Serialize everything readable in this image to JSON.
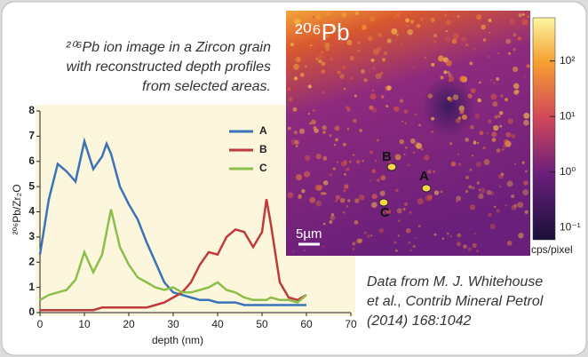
{
  "chart_data": {
    "type": "line",
    "title_lines": [
      "²⁰⁶Pb ion image in a Zircon grain",
      "with reconstructed depth profiles",
      "from selected areas."
    ],
    "xlabel": "depth (nm)",
    "ylabel": "²⁰⁶Pb/Zr₂O",
    "x": [
      0,
      2,
      4,
      6,
      8,
      10,
      12,
      14,
      15,
      16,
      18,
      20,
      22,
      24,
      26,
      28,
      30,
      32,
      34,
      36,
      38,
      40,
      42,
      44,
      46,
      48,
      50,
      51,
      52,
      54,
      56,
      58,
      60
    ],
    "series": [
      {
        "name": "A",
        "color": "#3a73b8",
        "values": [
          2.3,
          4.5,
          5.9,
          5.6,
          5.2,
          6.8,
          5.7,
          6.2,
          6.7,
          6.3,
          5.0,
          4.3,
          3.7,
          2.8,
          2.0,
          1.2,
          0.8,
          0.7,
          0.6,
          0.5,
          0.5,
          0.4,
          0.4,
          0.4,
          0.3,
          0.3,
          0.3,
          0.3,
          0.3,
          0.3,
          0.3,
          0.3,
          0.3
        ]
      },
      {
        "name": "B",
        "color": "#c0393b",
        "values": [
          0.1,
          0.1,
          0.1,
          0.1,
          0.1,
          0.1,
          0.1,
          0.2,
          0.2,
          0.2,
          0.2,
          0.2,
          0.2,
          0.2,
          0.3,
          0.4,
          0.6,
          0.8,
          1.2,
          1.9,
          2.4,
          2.3,
          3.0,
          3.3,
          3.2,
          2.6,
          3.2,
          4.5,
          3.5,
          1.2,
          0.6,
          0.5,
          0.7
        ]
      },
      {
        "name": "C",
        "color": "#8cbf4a",
        "values": [
          0.5,
          0.7,
          0.8,
          0.9,
          1.3,
          2.4,
          1.6,
          2.3,
          3.2,
          4.1,
          2.6,
          1.9,
          1.4,
          1.2,
          1.0,
          0.9,
          1.0,
          0.8,
          0.8,
          0.9,
          1.0,
          1.2,
          0.9,
          0.8,
          0.6,
          0.5,
          0.5,
          0.5,
          0.6,
          0.5,
          0.5,
          0.4,
          0.7
        ]
      }
    ],
    "xlim": [
      0,
      70
    ],
    "xticks": [
      0,
      10,
      20,
      30,
      40,
      50,
      60,
      70
    ],
    "ylim": [
      0,
      8
    ],
    "yticks": [
      0,
      1,
      2,
      3,
      4,
      5,
      6,
      7,
      8
    ],
    "legend": "upper right"
  },
  "ion_image": {
    "label": "²⁰⁶Pb",
    "scale_bar": "5µm",
    "points": [
      "A",
      "B",
      "C"
    ],
    "colorbar": {
      "scale": "log",
      "clim": [
        0.06,
        600
      ],
      "unit": "cps/pixel",
      "ticks": [
        {
          "value": 100,
          "label": "10²"
        },
        {
          "value": 10,
          "label": "10¹"
        },
        {
          "value": 1,
          "label": "10⁰"
        },
        {
          "value": 0.1,
          "label": "10⁻¹"
        }
      ]
    }
  },
  "caption_lines": [
    "Data from M. J. Whitehouse",
    "et al., Contrib Mineral Petrol",
    "(2014) 168:1042"
  ]
}
